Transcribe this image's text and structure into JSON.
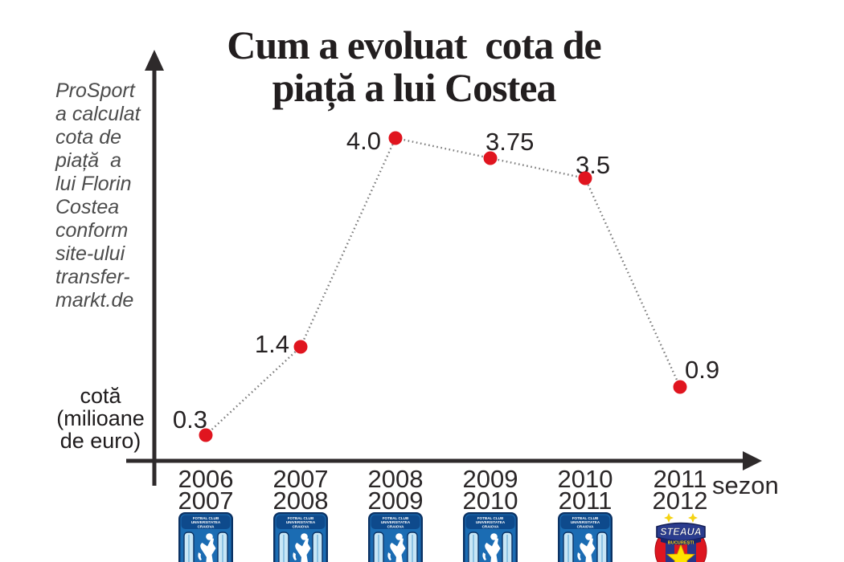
{
  "title": "Cum a evoluat  cota de\npiață a lui Costea",
  "note": "ProSport\na calculat\ncota de\npiață  a\nlui Florin\nCostea\nconform\nsite-ului\ntransfer-\nmarkt.de",
  "y_axis_label": "cotă\n(milioane\nde euro)",
  "x_axis_label": "sezon",
  "colors": {
    "point": "#e0151f",
    "dotted_line": "#7d7d7d",
    "axis": "#2e2a2b",
    "label_text": "#262223",
    "tick_text": "#2a2627"
  },
  "chart_data": {
    "type": "line",
    "title": "Cum a evoluat cota de piață a lui Costea",
    "xlabel": "sezon",
    "ylabel": "cotă (milioane de euro)",
    "ylim": [
      0,
      4.5
    ],
    "grid": false,
    "legend": false,
    "line_style": "dotted",
    "seasons": [
      [
        "2006",
        "2007"
      ],
      [
        "2007",
        "2008"
      ],
      [
        "2008",
        "2009"
      ],
      [
        "2009",
        "2010"
      ],
      [
        "2010",
        "2011"
      ],
      [
        "2011",
        "2012"
      ]
    ],
    "values": [
      0.3,
      1.4,
      4.0,
      3.75,
      3.5,
      0.9
    ],
    "point_labels": [
      "0.3",
      "1.4",
      "4.0",
      "3.75",
      "3.5",
      "0.9"
    ],
    "clubs": [
      "craiova",
      "craiova",
      "craiova",
      "craiova",
      "craiova",
      "steaua"
    ]
  },
  "logos": {
    "craiova": {
      "name": "FC Universitatea Craiova",
      "text_lines": [
        "FOTBAL CLUB",
        "UNIVERSITATEA",
        "CRAIOVA"
      ]
    },
    "steaua": {
      "name": "FC Steaua București",
      "banner": "STEAUA",
      "sub": "BUCUREȘTI"
    }
  }
}
